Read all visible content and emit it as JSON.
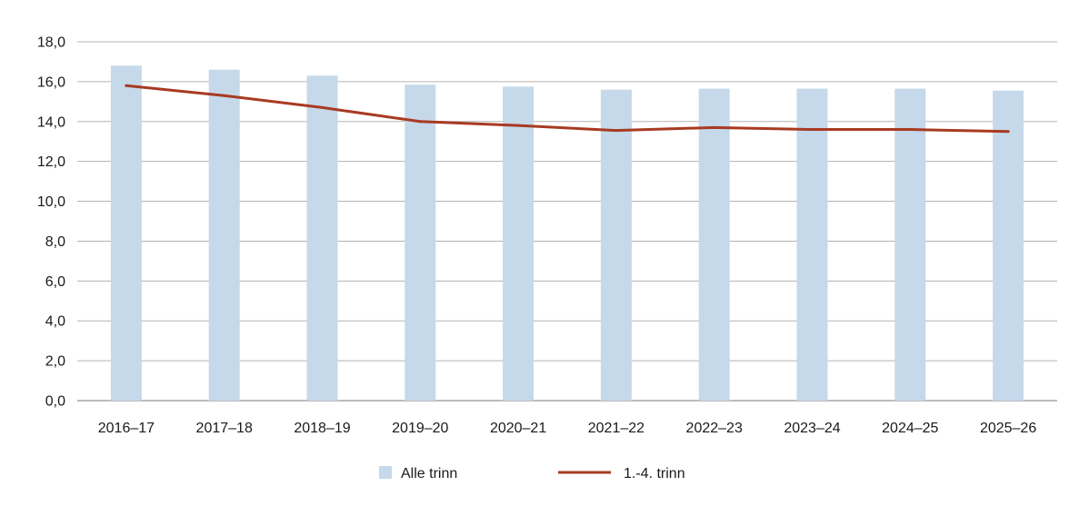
{
  "chart_data": {
    "type": "bar",
    "title": "",
    "xlabel": "",
    "ylabel": "",
    "categories": [
      "2016–17",
      "2017–18",
      "2018–19",
      "2019–20",
      "2020–21",
      "2021–22",
      "2022–23",
      "2023–24",
      "2024–25",
      "2025–26"
    ],
    "ylim": [
      0,
      18
    ],
    "yticks": [
      0,
      2,
      4,
      6,
      8,
      10,
      12,
      14,
      16,
      18
    ],
    "ytick_labels": [
      "0,0",
      "2,0",
      "4,0",
      "6,0",
      "8,0",
      "10,0",
      "12,0",
      "14,0",
      "16,0",
      "18,0"
    ],
    "grid": true,
    "legend_position": "bottom-center",
    "series": [
      {
        "name": "Alle trinn",
        "kind": "bar",
        "color": "#c5d9ea",
        "values": [
          16.8,
          16.6,
          16.3,
          15.85,
          15.75,
          15.6,
          15.65,
          15.65,
          15.65,
          15.55
        ]
      },
      {
        "name": "1.-4. trinn",
        "kind": "line",
        "color": "#a83a22",
        "values": [
          15.8,
          15.3,
          14.7,
          14.0,
          13.8,
          13.55,
          13.7,
          13.6,
          13.6,
          13.5
        ]
      }
    ]
  }
}
